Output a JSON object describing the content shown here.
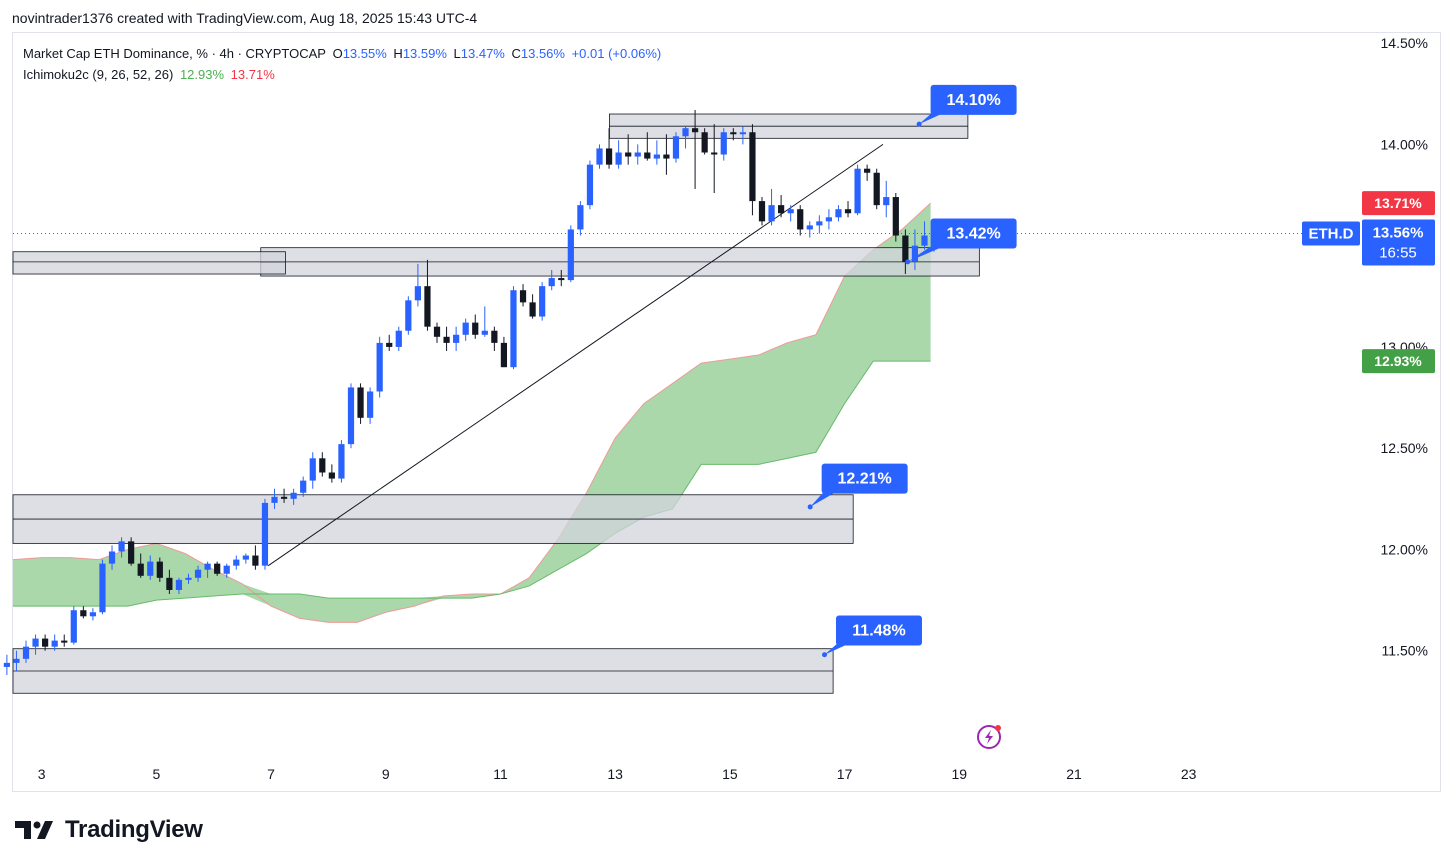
{
  "header": {
    "created_by": "novintrader1376 created with TradingView.com, Aug 18, 2025 15:43 UTC-4"
  },
  "legend": {
    "symbol": "Market Cap ETH Dominance, % · 4h · CRYPTOCAP",
    "o_label": "O",
    "o_value": "13.55%",
    "h_label": "H",
    "h_value": "13.59%",
    "l_label": "L",
    "l_value": "13.47%",
    "c_label": "C",
    "c_value": "13.56%",
    "change": "+0.01 (+0.06%)",
    "indicator": "Ichimoku2c (9, 26, 52, 26)",
    "ind_value1": "12.93%",
    "ind_value2": "13.71%"
  },
  "brand": {
    "name": "TradingView"
  },
  "colors": {
    "up": "#2962ff",
    "down": "#131722",
    "cloud": "#a5d6a7",
    "cloud_edge": "#ef9a9a",
    "zone": "#d1d4dc",
    "label": "#2962ff",
    "red_badge": "#f23645",
    "green_badge": "#43a047"
  },
  "chart_data": {
    "type": "candlestick",
    "timeframe": "4h",
    "y_ticks": [
      {
        "v": 14.5,
        "label": "14.50%"
      },
      {
        "v": 14.0,
        "label": "14.00%"
      },
      {
        "v": 13.0,
        "label": "13.00%"
      },
      {
        "v": 12.5,
        "label": "12.50%"
      },
      {
        "v": 12.0,
        "label": "12.00%"
      },
      {
        "v": 11.5,
        "label": "11.50%"
      }
    ],
    "ylim": [
      11.0,
      14.55
    ],
    "x_ticks": [
      "3",
      "5",
      "7",
      "9",
      "11",
      "13",
      "15",
      "17",
      "19",
      "21",
      "23"
    ],
    "xlim": [
      2.5,
      25.9
    ],
    "last_candle_x": 18.56,
    "price_labels": {
      "symbol": "ETH.D",
      "price": "13.56%",
      "countdown": "16:55",
      "cloud_top": "13.71%",
      "cloud_bottom": "12.93%"
    },
    "price_line": 13.56,
    "zones": [
      {
        "x0": 12.9,
        "x1": 19.15,
        "y0": 14.03,
        "y1": 14.15
      },
      {
        "x0": 6.82,
        "x1": 19.35,
        "y0": 13.35,
        "y1": 13.49
      },
      {
        "x0": 2.5,
        "x1": 7.25,
        "y0": 13.36,
        "y1": 13.47
      },
      {
        "x0": 2.5,
        "x1": 17.15,
        "y0": 12.03,
        "y1": 12.27
      },
      {
        "x0": 2.5,
        "x1": 16.8,
        "y0": 11.29,
        "y1": 11.51
      }
    ],
    "zone_lines": [
      {
        "x0": 12.9,
        "x1": 19.15,
        "y": 14.09
      },
      {
        "x0": 2.5,
        "x1": 7.25,
        "y": 13.42
      },
      {
        "x0": 6.82,
        "x1": 19.35,
        "y": 13.42
      },
      {
        "x0": 2.5,
        "x1": 17.15,
        "y": 12.15
      },
      {
        "x0": 2.5,
        "x1": 16.8,
        "y": 11.4
      }
    ],
    "targets": [
      {
        "label": "14.10%",
        "x": 18.3,
        "y": 14.1,
        "tx": 18.5,
        "ty": 14.22
      },
      {
        "label": "13.42%",
        "x": 18.1,
        "y": 13.42,
        "tx": 18.5,
        "ty": 13.56
      },
      {
        "label": "12.21%",
        "x": 16.4,
        "y": 12.21,
        "tx": 16.6,
        "ty": 12.35
      },
      {
        "label": "11.48%",
        "x": 16.65,
        "y": 11.48,
        "tx": 16.85,
        "ty": 11.6
      }
    ],
    "trendline": {
      "x0": 6.95,
      "y0": 11.92,
      "x1": 17.67,
      "y1": 14.0
    },
    "cloud": {
      "x": [
        2.5,
        3.0,
        3.5,
        4.0,
        4.5,
        5.0,
        5.5,
        6.0,
        6.5,
        7.0,
        7.5,
        8.0,
        8.5,
        9.0,
        9.5,
        10.0,
        10.5,
        11.0,
        11.5,
        12.0,
        12.5,
        13.0,
        13.5,
        14.0,
        14.5,
        15.0,
        15.5,
        16.0,
        16.5,
        17.0,
        17.5,
        18.0,
        18.5
      ],
      "span_a": [
        11.95,
        11.96,
        11.96,
        11.95,
        12.0,
        12.03,
        11.98,
        11.9,
        11.83,
        11.72,
        11.66,
        11.64,
        11.64,
        11.69,
        11.72,
        11.77,
        11.78,
        11.78,
        11.86,
        12.05,
        12.28,
        12.55,
        12.72,
        12.82,
        12.92,
        12.94,
        12.96,
        13.02,
        13.06,
        13.35,
        13.48,
        13.58,
        13.71
      ],
      "span_b": [
        11.72,
        11.72,
        11.72,
        11.72,
        11.72,
        11.75,
        11.76,
        11.77,
        11.78,
        11.78,
        11.78,
        11.76,
        11.76,
        11.76,
        11.76,
        11.76,
        11.76,
        11.78,
        11.82,
        11.9,
        11.98,
        12.08,
        12.16,
        12.2,
        12.42,
        12.42,
        12.42,
        12.45,
        12.48,
        12.72,
        12.93,
        12.93,
        12.93
      ]
    },
    "candles": [
      {
        "o": 11.42,
        "h": 11.48,
        "l": 11.38,
        "c": 11.44
      },
      {
        "o": 11.44,
        "h": 11.5,
        "l": 11.4,
        "c": 11.46
      },
      {
        "o": 11.46,
        "h": 11.55,
        "l": 11.44,
        "c": 11.52
      },
      {
        "o": 11.52,
        "h": 11.58,
        "l": 11.48,
        "c": 11.56
      },
      {
        "o": 11.56,
        "h": 11.58,
        "l": 11.5,
        "c": 11.52
      },
      {
        "o": 11.52,
        "h": 11.58,
        "l": 11.5,
        "c": 11.55
      },
      {
        "o": 11.55,
        "h": 11.58,
        "l": 11.52,
        "c": 11.54
      },
      {
        "o": 11.54,
        "h": 11.72,
        "l": 11.53,
        "c": 11.7
      },
      {
        "o": 11.7,
        "h": 11.72,
        "l": 11.66,
        "c": 11.67
      },
      {
        "o": 11.67,
        "h": 11.71,
        "l": 11.65,
        "c": 11.69
      },
      {
        "o": 11.69,
        "h": 11.95,
        "l": 11.68,
        "c": 11.93
      },
      {
        "o": 11.93,
        "h": 12.02,
        "l": 11.9,
        "c": 11.99
      },
      {
        "o": 11.99,
        "h": 12.06,
        "l": 11.96,
        "c": 12.04
      },
      {
        "o": 12.04,
        "h": 12.06,
        "l": 11.92,
        "c": 11.93
      },
      {
        "o": 11.93,
        "h": 11.98,
        "l": 11.86,
        "c": 11.87
      },
      {
        "o": 11.87,
        "h": 11.97,
        "l": 11.85,
        "c": 11.94
      },
      {
        "o": 11.94,
        "h": 11.96,
        "l": 11.84,
        "c": 11.86
      },
      {
        "o": 11.86,
        "h": 11.9,
        "l": 11.78,
        "c": 11.8
      },
      {
        "o": 11.8,
        "h": 11.86,
        "l": 11.78,
        "c": 11.85
      },
      {
        "o": 11.85,
        "h": 11.88,
        "l": 11.83,
        "c": 11.86
      },
      {
        "o": 11.86,
        "h": 11.92,
        "l": 11.84,
        "c": 11.9
      },
      {
        "o": 11.9,
        "h": 11.94,
        "l": 11.86,
        "c": 11.93
      },
      {
        "o": 11.93,
        "h": 11.94,
        "l": 11.87,
        "c": 11.88
      },
      {
        "o": 11.88,
        "h": 11.93,
        "l": 11.86,
        "c": 11.92
      },
      {
        "o": 11.92,
        "h": 11.97,
        "l": 11.9,
        "c": 11.95
      },
      {
        "o": 11.95,
        "h": 11.98,
        "l": 11.93,
        "c": 11.97
      },
      {
        "o": 11.97,
        "h": 12.02,
        "l": 11.9,
        "c": 11.92
      },
      {
        "o": 11.92,
        "h": 12.25,
        "l": 11.9,
        "c": 12.23
      },
      {
        "o": 12.23,
        "h": 12.3,
        "l": 12.2,
        "c": 12.26
      },
      {
        "o": 12.26,
        "h": 12.3,
        "l": 12.23,
        "c": 12.25
      },
      {
        "o": 12.25,
        "h": 12.3,
        "l": 12.22,
        "c": 12.28
      },
      {
        "o": 12.28,
        "h": 12.36,
        "l": 12.26,
        "c": 12.34
      },
      {
        "o": 12.34,
        "h": 12.48,
        "l": 12.3,
        "c": 12.45
      },
      {
        "o": 12.45,
        "h": 12.48,
        "l": 12.36,
        "c": 12.38
      },
      {
        "o": 12.38,
        "h": 12.42,
        "l": 12.33,
        "c": 12.35
      },
      {
        "o": 12.35,
        "h": 12.54,
        "l": 12.33,
        "c": 12.52
      },
      {
        "o": 12.52,
        "h": 12.82,
        "l": 12.5,
        "c": 12.8
      },
      {
        "o": 12.8,
        "h": 12.82,
        "l": 12.62,
        "c": 12.65
      },
      {
        "o": 12.65,
        "h": 12.8,
        "l": 12.62,
        "c": 12.78
      },
      {
        "o": 12.78,
        "h": 13.05,
        "l": 12.75,
        "c": 13.02
      },
      {
        "o": 13.02,
        "h": 13.06,
        "l": 12.98,
        "c": 13.0
      },
      {
        "o": 13.0,
        "h": 13.1,
        "l": 12.98,
        "c": 13.08
      },
      {
        "o": 13.08,
        "h": 13.25,
        "l": 13.06,
        "c": 13.23
      },
      {
        "o": 13.23,
        "h": 13.41,
        "l": 13.2,
        "c": 13.3
      },
      {
        "o": 13.3,
        "h": 13.43,
        "l": 13.08,
        "c": 13.1
      },
      {
        "o": 13.1,
        "h": 13.12,
        "l": 13.02,
        "c": 13.05
      },
      {
        "o": 13.05,
        "h": 13.1,
        "l": 12.98,
        "c": 13.02
      },
      {
        "o": 13.02,
        "h": 13.1,
        "l": 12.98,
        "c": 13.06
      },
      {
        "o": 13.06,
        "h": 13.14,
        "l": 13.03,
        "c": 13.12
      },
      {
        "o": 13.12,
        "h": 13.16,
        "l": 13.04,
        "c": 13.06
      },
      {
        "o": 13.06,
        "h": 13.2,
        "l": 13.05,
        "c": 13.08
      },
      {
        "o": 13.08,
        "h": 13.1,
        "l": 12.98,
        "c": 13.02
      },
      {
        "o": 13.02,
        "h": 13.05,
        "l": 12.9,
        "c": 12.9
      },
      {
        "o": 12.9,
        "h": 13.3,
        "l": 12.89,
        "c": 13.28
      },
      {
        "o": 13.28,
        "h": 13.31,
        "l": 13.2,
        "c": 13.22
      },
      {
        "o": 13.22,
        "h": 13.26,
        "l": 13.14,
        "c": 13.15
      },
      {
        "o": 13.15,
        "h": 13.32,
        "l": 13.13,
        "c": 13.3
      },
      {
        "o": 13.3,
        "h": 13.38,
        "l": 13.28,
        "c": 13.34
      },
      {
        "o": 13.34,
        "h": 13.38,
        "l": 13.3,
        "c": 13.33
      },
      {
        "o": 13.33,
        "h": 13.6,
        "l": 13.32,
        "c": 13.58
      },
      {
        "o": 13.58,
        "h": 13.72,
        "l": 13.55,
        "c": 13.7
      },
      {
        "o": 13.7,
        "h": 13.92,
        "l": 13.68,
        "c": 13.9
      },
      {
        "o": 13.9,
        "h": 14.0,
        "l": 13.88,
        "c": 13.98
      },
      {
        "o": 13.98,
        "h": 14.08,
        "l": 13.88,
        "c": 13.9
      },
      {
        "o": 13.9,
        "h": 14.02,
        "l": 13.88,
        "c": 13.96
      },
      {
        "o": 13.96,
        "h": 14.05,
        "l": 13.9,
        "c": 13.94
      },
      {
        "o": 13.94,
        "h": 14.0,
        "l": 13.9,
        "c": 13.96
      },
      {
        "o": 13.96,
        "h": 14.06,
        "l": 13.92,
        "c": 13.93
      },
      {
        "o": 13.93,
        "h": 14.02,
        "l": 13.9,
        "c": 13.95
      },
      {
        "o": 13.95,
        "h": 14.05,
        "l": 13.85,
        "c": 13.93
      },
      {
        "o": 13.93,
        "h": 14.06,
        "l": 13.91,
        "c": 14.04
      },
      {
        "o": 14.04,
        "h": 14.09,
        "l": 13.98,
        "c": 14.08
      },
      {
        "o": 14.08,
        "h": 14.17,
        "l": 13.78,
        "c": 14.06
      },
      {
        "o": 14.06,
        "h": 14.08,
        "l": 13.95,
        "c": 13.96
      },
      {
        "o": 13.96,
        "h": 14.1,
        "l": 13.76,
        "c": 13.95
      },
      {
        "o": 13.95,
        "h": 14.08,
        "l": 13.92,
        "c": 14.06
      },
      {
        "o": 14.06,
        "h": 14.08,
        "l": 14.02,
        "c": 14.05
      },
      {
        "o": 14.05,
        "h": 14.09,
        "l": 14.0,
        "c": 14.06
      },
      {
        "o": 14.06,
        "h": 14.1,
        "l": 13.65,
        "c": 13.72
      },
      {
        "o": 13.72,
        "h": 13.74,
        "l": 13.6,
        "c": 13.62
      },
      {
        "o": 13.62,
        "h": 13.78,
        "l": 13.6,
        "c": 13.7
      },
      {
        "o": 13.7,
        "h": 13.75,
        "l": 13.64,
        "c": 13.66
      },
      {
        "o": 13.66,
        "h": 13.7,
        "l": 13.62,
        "c": 13.68
      },
      {
        "o": 13.68,
        "h": 13.7,
        "l": 13.55,
        "c": 13.58
      },
      {
        "o": 13.58,
        "h": 13.62,
        "l": 13.54,
        "c": 13.6
      },
      {
        "o": 13.6,
        "h": 13.65,
        "l": 13.56,
        "c": 13.62
      },
      {
        "o": 13.62,
        "h": 13.68,
        "l": 13.58,
        "c": 13.64
      },
      {
        "o": 13.64,
        "h": 13.7,
        "l": 13.62,
        "c": 13.68
      },
      {
        "o": 13.68,
        "h": 13.72,
        "l": 13.64,
        "c": 13.66
      },
      {
        "o": 13.66,
        "h": 13.9,
        "l": 13.65,
        "c": 13.88
      },
      {
        "o": 13.88,
        "h": 13.9,
        "l": 13.82,
        "c": 13.86
      },
      {
        "o": 13.86,
        "h": 13.88,
        "l": 13.68,
        "c": 13.7
      },
      {
        "o": 13.7,
        "h": 13.82,
        "l": 13.64,
        "c": 13.74
      },
      {
        "o": 13.74,
        "h": 13.76,
        "l": 13.52,
        "c": 13.55
      },
      {
        "o": 13.55,
        "h": 13.58,
        "l": 13.36,
        "c": 13.42
      },
      {
        "o": 13.42,
        "h": 13.58,
        "l": 13.38,
        "c": 13.5
      },
      {
        "o": 13.5,
        "h": 13.62,
        "l": 13.48,
        "c": 13.55
      },
      {
        "o": 13.55,
        "h": 13.59,
        "l": 13.47,
        "c": 13.56
      }
    ]
  }
}
